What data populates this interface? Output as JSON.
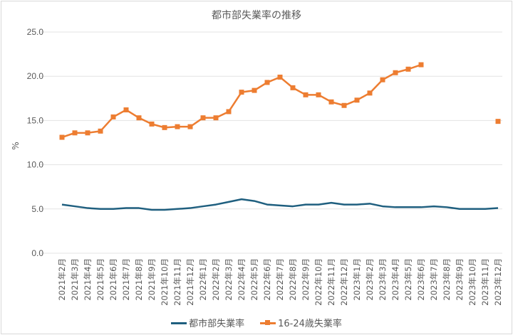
{
  "chart_data": {
    "type": "line",
    "title": "都市部失業率の推移",
    "xlabel": "",
    "ylabel": "%",
    "ylim": [
      0,
      25
    ],
    "yticks": [
      "0.0",
      "5.0",
      "10.0",
      "15.0",
      "20.0",
      "25.0"
    ],
    "grid": true,
    "legend_position": "bottom",
    "categories": [
      "2021年2月",
      "2021年3月",
      "2021年4月",
      "2021年5月",
      "2021年6月",
      "2021年7月",
      "2021年8月",
      "2021年9月",
      "2021年10月",
      "2021年11月",
      "2021年12月",
      "2022年1月",
      "2022年2月",
      "2022年3月",
      "2022年4月",
      "2022年5月",
      "2022年6月",
      "2022年7月",
      "2022年8月",
      "2022年9月",
      "2022年10月",
      "2022年11月",
      "2022年12月",
      "2023年1月",
      "2023年2月",
      "2023年3月",
      "2023年4月",
      "2023年5月",
      "2023年6月",
      "2023年7月",
      "2023年8月",
      "2023年9月",
      "2023年10月",
      "2023年11月",
      "2023年12月"
    ],
    "series": [
      {
        "name": "都市部失業率",
        "color": "#1f5f7f",
        "marker": "none",
        "values": [
          5.5,
          5.3,
          5.1,
          5.0,
          5.0,
          5.1,
          5.1,
          4.9,
          4.9,
          5.0,
          5.1,
          5.3,
          5.5,
          5.8,
          6.1,
          5.9,
          5.5,
          5.4,
          5.3,
          5.5,
          5.5,
          5.7,
          5.5,
          5.5,
          5.6,
          5.3,
          5.2,
          5.2,
          5.2,
          5.3,
          5.2,
          5.0,
          5.0,
          5.0,
          5.1
        ]
      },
      {
        "name": "16-24歳失業率",
        "color": "#ed7d31",
        "marker": "square",
        "values": [
          13.1,
          13.6,
          13.6,
          13.8,
          15.4,
          16.2,
          15.3,
          14.6,
          14.2,
          14.3,
          14.3,
          15.3,
          15.3,
          16.0,
          18.2,
          18.4,
          19.3,
          19.9,
          18.7,
          17.9,
          17.9,
          17.1,
          16.7,
          17.3,
          18.1,
          19.6,
          20.4,
          20.8,
          21.3,
          null,
          null,
          null,
          null,
          null,
          14.9
        ]
      }
    ]
  },
  "legend": {
    "items": [
      {
        "label": "都市部失業率"
      },
      {
        "label": "16-24歳失業率"
      }
    ]
  }
}
